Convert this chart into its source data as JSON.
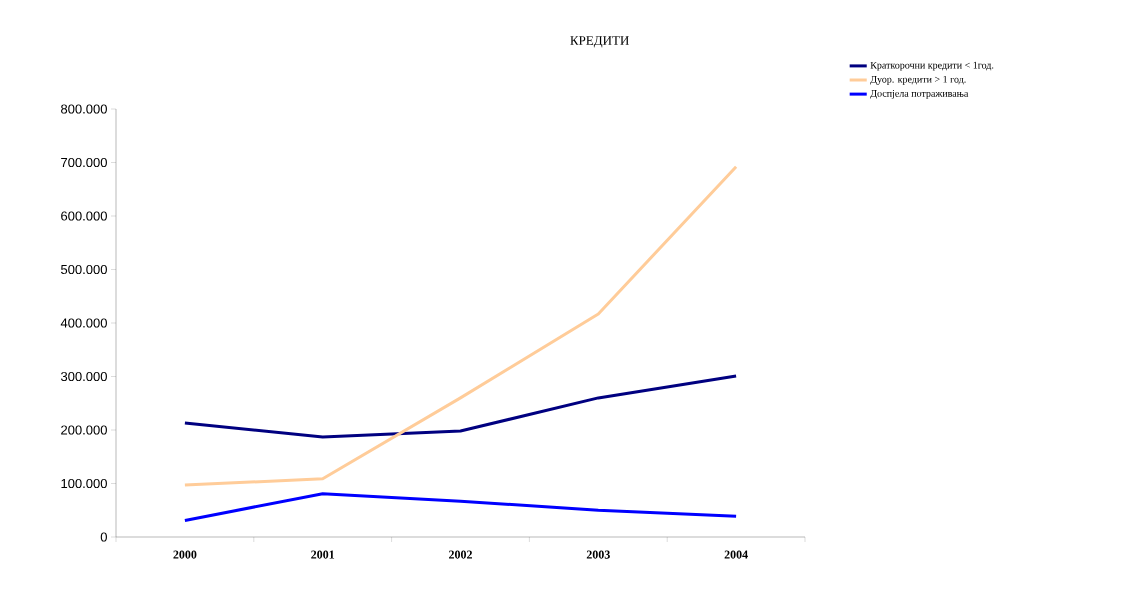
{
  "chart_data": {
    "type": "line",
    "title": "КРЕДИТИ",
    "categories": [
      "2000",
      "2001",
      "2002",
      "2003",
      "2004"
    ],
    "series": [
      {
        "name": "Краткорочни кредити < 1год.",
        "color": "#000080",
        "values": [
          213000,
          187000,
          198000,
          260000,
          301000
        ]
      },
      {
        "name": "Дуор. кредити > 1 год.",
        "color": "#ffcc99",
        "values": [
          97000,
          109000,
          260000,
          417000,
          692000
        ]
      },
      {
        "name": "Доспјела потраживања",
        "color": "#0000ff",
        "values": [
          31000,
          81000,
          67000,
          50000,
          39000
        ]
      }
    ],
    "ylim": [
      0,
      800000
    ],
    "yticks": [
      {
        "value": 0,
        "label": "0"
      },
      {
        "value": 100000,
        "label": "100.000"
      },
      {
        "value": 200000,
        "label": "200.000"
      },
      {
        "value": 300000,
        "label": "300.000"
      },
      {
        "value": 400000,
        "label": "400.000"
      },
      {
        "value": 500000,
        "label": "500.000"
      },
      {
        "value": 600000,
        "label": "600.000"
      },
      {
        "value": 700000,
        "label": "700.000"
      },
      {
        "value": 800000,
        "label": "800.000"
      }
    ],
    "grid": false,
    "legend": "top right",
    "marker": "none",
    "line_style": "solid"
  }
}
